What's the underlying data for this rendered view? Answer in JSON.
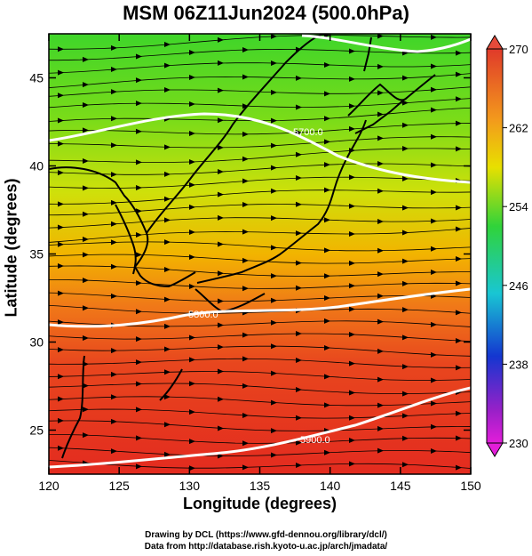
{
  "title": "MSM 06Z11Jun2024 (500.0hPa)",
  "axes": {
    "xlabel": "Longitude (degrees)",
    "ylabel": "Latitude  (degrees)",
    "xticks": [
      "120",
      "125",
      "130",
      "135",
      "140",
      "145",
      "150"
    ],
    "yticks": [
      "25",
      "30",
      "35",
      "40",
      "45"
    ],
    "xlim": [
      120,
      150
    ],
    "ylim": [
      22.5,
      47.5
    ]
  },
  "colorbar": {
    "ticks": [
      "270",
      "262",
      "254",
      "246",
      "238",
      "230"
    ],
    "range": [
      230,
      270
    ]
  },
  "contours": [
    {
      "label": "5700.0"
    },
    {
      "label": "5800.0"
    },
    {
      "label": "5900.0"
    }
  ],
  "footer": {
    "line1": "Drawing by DCL (https://www.gfd-dennou.org/library/dcl/)",
    "line2": "Data from http://database.rish.kyoto-u.ac.jp/arch/jmadata/"
  },
  "colors": {
    "warm": "#e53a22",
    "mid": "#f2b400",
    "cool": "#36d21e",
    "contour": "#ffffff"
  }
}
